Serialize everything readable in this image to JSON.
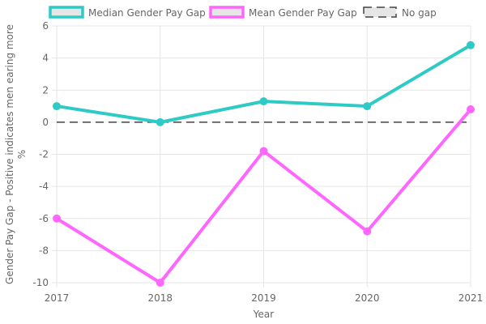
{
  "chart_data": {
    "type": "line",
    "x": [
      "2017",
      "2018",
      "2019",
      "2020",
      "2021"
    ],
    "xlabel": "Year",
    "ylabel_lines": [
      "Gender Pay Gap - Positive indicates men earing more",
      "%"
    ],
    "ylim": [
      -10,
      6
    ],
    "yticks": [
      -10,
      -8,
      -6,
      -4,
      -2,
      0,
      2,
      4,
      6
    ],
    "grid": true,
    "legend_position": "top",
    "series": [
      {
        "name": "Median Gender Pay Gap",
        "color": "#2ecac6",
        "values": [
          1.0,
          0.0,
          1.3,
          1.0,
          4.8
        ]
      },
      {
        "name": "Mean Gender Pay Gap",
        "color": "#ff66ff",
        "values": [
          -6.0,
          -10.0,
          -1.8,
          -6.8,
          0.8
        ]
      }
    ],
    "reference_line": {
      "name": "No gap",
      "value": 0,
      "color": "#444444",
      "style": "dashed"
    }
  }
}
